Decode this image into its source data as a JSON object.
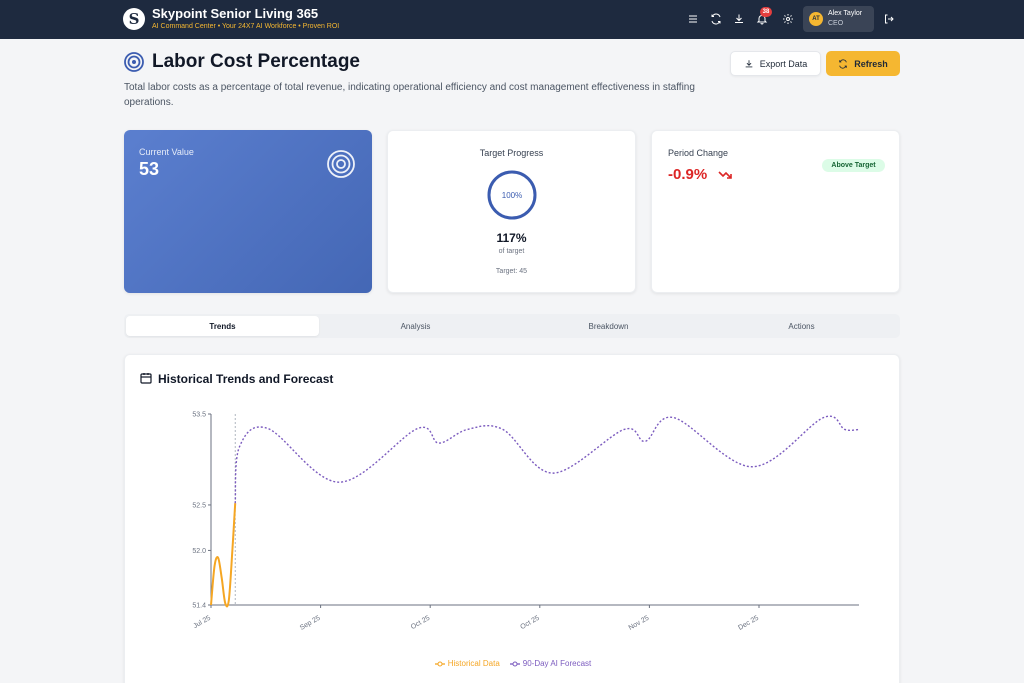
{
  "header": {
    "logo_letter": "S",
    "brand_name": "Skypoint Senior Living 365",
    "brand_tagline": "AI Command Center • Your 24X7 AI Workforce • Proven ROI",
    "icons": [
      "menu-icon",
      "sync-icon",
      "download-icon",
      "bell-icon",
      "gear-icon",
      "logout-icon"
    ],
    "notification_count": "38",
    "user": {
      "initials": "AT",
      "name": "Alex Taylor",
      "role": "CEO"
    }
  },
  "page": {
    "title": "Labor Cost Percentage",
    "description": "Total labor costs as a percentage of total revenue, indicating operational efficiency and cost management effectiveness in staffing operations.",
    "export_label": "Export Data",
    "refresh_label": "Refresh"
  },
  "cards": {
    "current": {
      "label": "Current Value",
      "value": "53"
    },
    "target": {
      "label": "Target Progress",
      "ring_text": "100%",
      "ring_fraction": 1.0,
      "pct": "117%",
      "of_target": "of target",
      "target_text": "Target: 45"
    },
    "period": {
      "label": "Period Change",
      "value": "-0.9%",
      "badge": "Above Target"
    }
  },
  "tabs": [
    {
      "label": "Trends",
      "active": true
    },
    {
      "label": "Analysis",
      "active": false
    },
    {
      "label": "Breakdown",
      "active": false
    },
    {
      "label": "Actions",
      "active": false
    }
  ],
  "colors": {
    "accent": "#f5b731",
    "primary_blue": "#4467b5",
    "historical": "#f5a623",
    "forecast": "#7c5cbf",
    "negative": "#dc2626"
  },
  "chart_data": {
    "type": "line",
    "title": "Historical Trends and Forecast",
    "x_tick_labels": [
      "Jul 25",
      "Sep 25",
      "Oct 25",
      "Oct 25",
      "Nov 25",
      "Dec 25"
    ],
    "y_tick_labels": [
      "51.4",
      "52.0",
      "52.5",
      "53.5"
    ],
    "ylim": [
      51.4,
      53.5
    ],
    "x_days": [
      0,
      91
    ],
    "series": [
      {
        "name": "Historical Data",
        "style": "solid",
        "points": [
          [
            0,
            51.4
          ],
          [
            0.5,
            51.83
          ],
          [
            1,
            51.92
          ],
          [
            1.5,
            51.7
          ],
          [
            2,
            51.42
          ],
          [
            2.5,
            51.45
          ],
          [
            3,
            52.0
          ],
          [
            3.4,
            52.52
          ]
        ]
      },
      {
        "name": "90-Day AI Forecast",
        "style": "dotted",
        "points": [
          [
            3.4,
            52.52
          ],
          [
            4,
            53.14
          ],
          [
            8,
            53.34
          ],
          [
            18,
            52.75
          ],
          [
            29,
            53.34
          ],
          [
            32,
            53.18
          ],
          [
            36,
            53.33
          ],
          [
            41,
            53.33
          ],
          [
            48,
            52.85
          ],
          [
            58,
            53.33
          ],
          [
            61,
            53.2
          ],
          [
            65,
            53.46
          ],
          [
            76,
            52.92
          ],
          [
            86,
            53.46
          ],
          [
            89,
            53.33
          ],
          [
            91,
            53.33
          ]
        ]
      }
    ],
    "legend_position": "bottom",
    "grid": false
  }
}
